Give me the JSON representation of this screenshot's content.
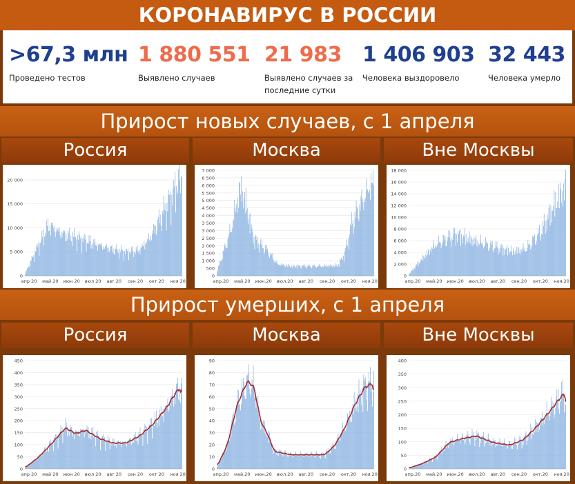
{
  "header": {
    "title": "КОРОНАВИРУС В РОССИИ"
  },
  "stats": [
    {
      "value": ">67,3 млн",
      "label": "Проведено тестов",
      "color": "#1f3f8f"
    },
    {
      "value": "1 880 551",
      "label": "Выявлено случаев",
      "color": "#ef6b4b"
    },
    {
      "value": "21 983",
      "label": "Выявлено случаев за последние сутки",
      "color": "#ef6b4b"
    },
    {
      "value": "1 406 903",
      "label": "Человека выздоровело",
      "color": "#1f3f8f"
    },
    {
      "value": "32 443",
      "label": "Человека умерло",
      "color": "#1f3f8f"
    }
  ],
  "sections": [
    {
      "title": "Прирост новых случаев, с 1 апреля",
      "columns": [
        "Россия",
        "Москва",
        "Вне Москвы"
      ]
    },
    {
      "title": "Прирост умерших, с 1 апреля",
      "columns": [
        "Россия",
        "Москва",
        "Вне Москвы"
      ]
    }
  ],
  "colors": {
    "bar": "#8db4e2",
    "trend": "#a52a2a",
    "band": "#c55a11",
    "column_band": "#9a420c"
  },
  "chart_data": [
    {
      "type": "bar",
      "title": "Россия",
      "months": [
        "апр 20",
        "май 20",
        "июн 20",
        "июл 20",
        "авг 20",
        "сен 20",
        "окт 20",
        "ноя 20"
      ],
      "ylim": [
        0,
        22000
      ],
      "yticks": [
        0,
        5000,
        10000,
        15000,
        20000
      ],
      "ytick_labels": [
        "0",
        "5 000",
        "10 000",
        "15 000",
        "20 000"
      ],
      "anchors": [
        [
          0,
          500
        ],
        [
          15,
          5000
        ],
        [
          35,
          10800
        ],
        [
          55,
          9000
        ],
        [
          90,
          7500
        ],
        [
          125,
          5800
        ],
        [
          150,
          5000
        ],
        [
          170,
          5500
        ],
        [
          185,
          8000
        ],
        [
          200,
          12000
        ],
        [
          215,
          16000
        ],
        [
          233,
          21600
        ]
      ]
    },
    {
      "type": "bar",
      "title": "Москва",
      "months": [
        "апр.20",
        "май.20",
        "июн.20",
        "июл.20",
        "авг.20",
        "сен.20",
        "окт.20",
        "ноя.20"
      ],
      "ylim": [
        0,
        7000
      ],
      "yticks": [
        0,
        500,
        1000,
        1500,
        2000,
        2500,
        3000,
        3500,
        4000,
        4500,
        5000,
        5500,
        6000,
        6500,
        7000
      ],
      "ytick_labels": [
        "0",
        "500",
        "1 000",
        "1 500",
        "2 000",
        "2 500",
        "3 000",
        "3 500",
        "4 000",
        "4 500",
        "5 000",
        "5 500",
        "6 000",
        "6 500",
        "7 000"
      ],
      "anchors": [
        [
          0,
          300
        ],
        [
          20,
          3000
        ],
        [
          35,
          6000
        ],
        [
          42,
          5000
        ],
        [
          55,
          2500
        ],
        [
          75,
          1700
        ],
        [
          90,
          800
        ],
        [
          110,
          650
        ],
        [
          150,
          650
        ],
        [
          180,
          700
        ],
        [
          190,
          1500
        ],
        [
          200,
          3500
        ],
        [
          215,
          5000
        ],
        [
          233,
          6500
        ]
      ]
    },
    {
      "type": "bar",
      "title": "Вне Москвы",
      "months": [
        "апр.20",
        "май.20",
        "июн.20",
        "июл.20",
        "авг.20",
        "сен.20",
        "окт.20",
        "ноя.20"
      ],
      "ylim": [
        0,
        18000
      ],
      "yticks": [
        0,
        2000,
        4000,
        6000,
        8000,
        10000,
        12000,
        14000,
        16000,
        18000
      ],
      "ytick_labels": [
        "0",
        "2 000",
        "4 000",
        "6 000",
        "8 000",
        "10 000",
        "12 000",
        "14 000",
        "16 000",
        "18 000"
      ],
      "anchors": [
        [
          0,
          300
        ],
        [
          20,
          3000
        ],
        [
          40,
          5500
        ],
        [
          70,
          7200
        ],
        [
          100,
          6000
        ],
        [
          130,
          5000
        ],
        [
          155,
          4200
        ],
        [
          175,
          4800
        ],
        [
          195,
          7500
        ],
        [
          215,
          12000
        ],
        [
          233,
          15500
        ]
      ]
    },
    {
      "type": "bar",
      "title": "Россия",
      "months": [
        "апр 20",
        "май 20",
        "июн 20",
        "июл 20",
        "авг 20",
        "сен 20",
        "окт 20",
        "ноя 20"
      ],
      "ylim": [
        0,
        450
      ],
      "yticks": [
        0,
        50,
        100,
        150,
        200,
        250,
        300,
        350,
        400,
        450
      ],
      "ytick_labels": [
        "0",
        "50",
        "100",
        "150",
        "200",
        "250",
        "300",
        "350",
        "400",
        "450"
      ],
      "anchors": [
        [
          0,
          5
        ],
        [
          20,
          50
        ],
        [
          40,
          110
        ],
        [
          60,
          175
        ],
        [
          75,
          150
        ],
        [
          90,
          165
        ],
        [
          110,
          130
        ],
        [
          130,
          110
        ],
        [
          150,
          110
        ],
        [
          170,
          140
        ],
        [
          190,
          190
        ],
        [
          210,
          260
        ],
        [
          225,
          330
        ],
        [
          233,
          350
        ]
      ]
    },
    {
      "type": "bar",
      "title": "Москва",
      "months": [
        "апр.20",
        "май.20",
        "июн.20",
        "июл.20",
        "авг.20",
        "сен.20",
        "окт.20",
        "ноя.20"
      ],
      "ylim": [
        0,
        90
      ],
      "yticks": [
        0,
        10,
        20,
        30,
        40,
        50,
        60,
        70,
        80,
        90
      ],
      "ytick_labels": [
        "0",
        "10",
        "20",
        "30",
        "40",
        "50",
        "60",
        "70",
        "80",
        "90"
      ],
      "anchors": [
        [
          0,
          2
        ],
        [
          15,
          20
        ],
        [
          30,
          55
        ],
        [
          45,
          75
        ],
        [
          55,
          70
        ],
        [
          65,
          40
        ],
        [
          75,
          30
        ],
        [
          85,
          15
        ],
        [
          110,
          12
        ],
        [
          140,
          12
        ],
        [
          160,
          12
        ],
        [
          175,
          20
        ],
        [
          190,
          35
        ],
        [
          205,
          55
        ],
        [
          220,
          70
        ],
        [
          233,
          73
        ]
      ]
    },
    {
      "type": "bar",
      "title": "Вне Москвы",
      "months": [
        "апр.20",
        "май.20",
        "июн.20",
        "июл.20",
        "авг.20",
        "сен.20",
        "окт.20",
        "ноя.20"
      ],
      "ylim": [
        0,
        400
      ],
      "yticks": [
        0,
        50,
        100,
        150,
        200,
        250,
        300,
        350,
        400
      ],
      "ytick_labels": [
        "0",
        "50",
        "100",
        "150",
        "200",
        "250",
        "300",
        "350",
        "400"
      ],
      "anchors": [
        [
          0,
          3
        ],
        [
          20,
          20
        ],
        [
          40,
          45
        ],
        [
          60,
          100
        ],
        [
          80,
          115
        ],
        [
          100,
          125
        ],
        [
          125,
          100
        ],
        [
          150,
          90
        ],
        [
          170,
          110
        ],
        [
          190,
          160
        ],
        [
          210,
          220
        ],
        [
          225,
          270
        ],
        [
          233,
          290
        ]
      ]
    }
  ]
}
